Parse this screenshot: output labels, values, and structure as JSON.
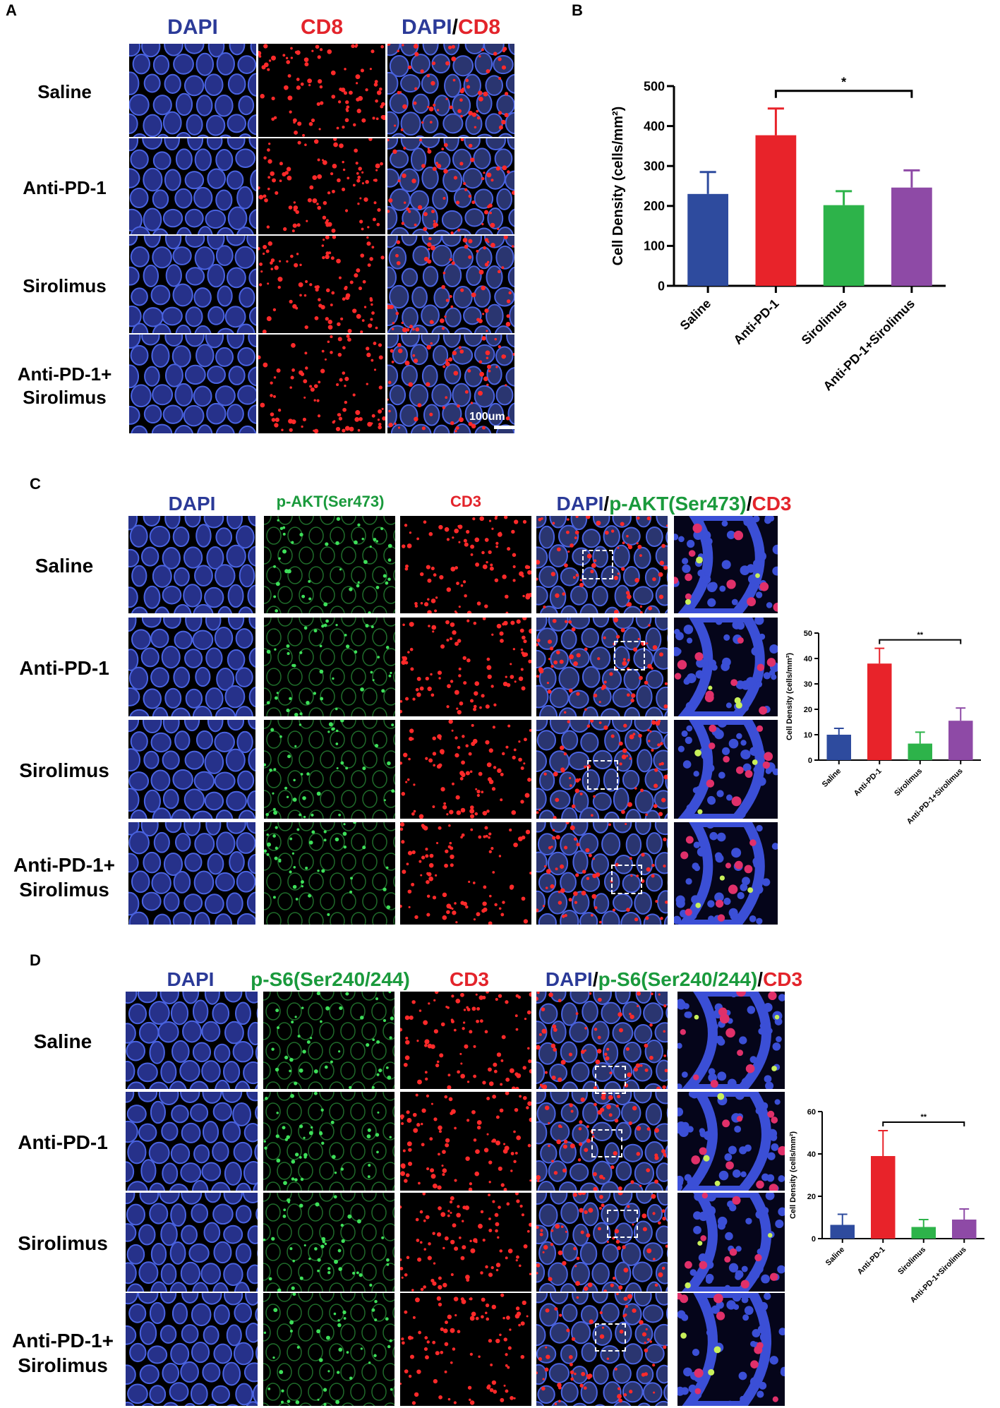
{
  "colors": {
    "dapi": "#2b3a98",
    "red": "#e3242b",
    "green": "#1a9a3c",
    "saline": "#2e4b9e",
    "antipd1": "#e8232a",
    "sirolimus": "#2db34a",
    "combo": "#8e4aa6"
  },
  "panels": {
    "A": {
      "label": "A",
      "columns": [
        {
          "parts": [
            {
              "text": "DAPI",
              "color": "blue"
            }
          ]
        },
        {
          "parts": [
            {
              "text": "CD8",
              "color": "red"
            }
          ]
        },
        {
          "parts": [
            {
              "text": "DAPI",
              "color": "blue"
            },
            {
              "text": "/",
              "color": "blk"
            },
            {
              "text": "CD8",
              "color": "red"
            }
          ]
        }
      ],
      "rows": [
        "Saline",
        "Anti-PD-1",
        "Sirolimus",
        "Anti-PD-1+\nSirolimus"
      ],
      "scalebar": "100um"
    },
    "B": {
      "label": "B"
    },
    "C": {
      "label": "C",
      "columns": [
        {
          "parts": [
            {
              "text": "DAPI",
              "color": "blue"
            }
          ]
        },
        {
          "parts": [
            {
              "text": "p-AKT(Ser473)",
              "color": "green"
            }
          ]
        },
        {
          "parts": [
            {
              "text": "CD3",
              "color": "red"
            }
          ]
        },
        {
          "parts": [
            {
              "text": "DAPI",
              "color": "blue"
            },
            {
              "text": "/",
              "color": "blk"
            },
            {
              "text": "p-AKT(Ser473)",
              "color": "green"
            },
            {
              "text": "/",
              "color": "blk"
            },
            {
              "text": "CD3",
              "color": "red"
            }
          ]
        }
      ],
      "rows": [
        "Saline",
        "Anti-PD-1",
        "Sirolimus",
        "Anti-PD-1+\nSirolimus"
      ]
    },
    "D": {
      "label": "D",
      "columns": [
        {
          "parts": [
            {
              "text": "DAPI",
              "color": "blue"
            }
          ]
        },
        {
          "parts": [
            {
              "text": "p-S6(Ser240/244)",
              "color": "green"
            }
          ]
        },
        {
          "parts": [
            {
              "text": "CD3",
              "color": "red"
            }
          ]
        },
        {
          "parts": [
            {
              "text": "DAPI",
              "color": "blue"
            },
            {
              "text": "/",
              "color": "blk"
            },
            {
              "text": "p-S6(Ser240/244)",
              "color": "green"
            },
            {
              "text": "/",
              "color": "blk"
            },
            {
              "text": "CD3",
              "color": "red"
            }
          ]
        }
      ],
      "rows": [
        "Saline",
        "Anti-PD-1",
        "Sirolimus",
        "Anti-PD-1+\nSirolimus"
      ]
    }
  },
  "chart_data": [
    {
      "id": "B",
      "type": "bar",
      "categories": [
        "Saline",
        "Anti-PD-1",
        "Sirolimus",
        "Anti-PD-1+Sirolimus"
      ],
      "values": [
        230,
        377,
        202,
        246
      ],
      "errors": [
        55,
        67,
        35,
        43
      ],
      "ylabel": "Cell Density (cells/mm²)",
      "ylim": [
        0,
        500
      ],
      "yticks": [
        0,
        100,
        200,
        300,
        400,
        500
      ],
      "significance": {
        "from": 1,
        "to": 3,
        "text": "*"
      }
    },
    {
      "id": "C",
      "type": "bar",
      "categories": [
        "Saline",
        "Anti-PD-1",
        "Sirolimus",
        "Anti-PD-1+Sirolimus"
      ],
      "values": [
        10,
        38,
        6.5,
        15.5
      ],
      "errors": [
        2.5,
        6,
        4.5,
        5
      ],
      "ylabel": "Cell Density (cells/mm²)",
      "ylim": [
        0,
        50
      ],
      "yticks": [
        0,
        10,
        20,
        30,
        40,
        50
      ],
      "significance": {
        "from": 1,
        "to": 3,
        "text": "**"
      }
    },
    {
      "id": "D",
      "type": "bar",
      "categories": [
        "Saline",
        "Anti-PD-1",
        "Sirolimus",
        "Anti-PD-1+Sirolimus"
      ],
      "values": [
        6.5,
        39,
        5.5,
        9
      ],
      "errors": [
        5,
        12,
        3.5,
        5
      ],
      "ylabel": "Cell Density (cells/mm²)",
      "ylim": [
        0,
        60
      ],
      "yticks": [
        0,
        20,
        40,
        60
      ],
      "significance": {
        "from": 1,
        "to": 3,
        "text": "**"
      }
    }
  ]
}
